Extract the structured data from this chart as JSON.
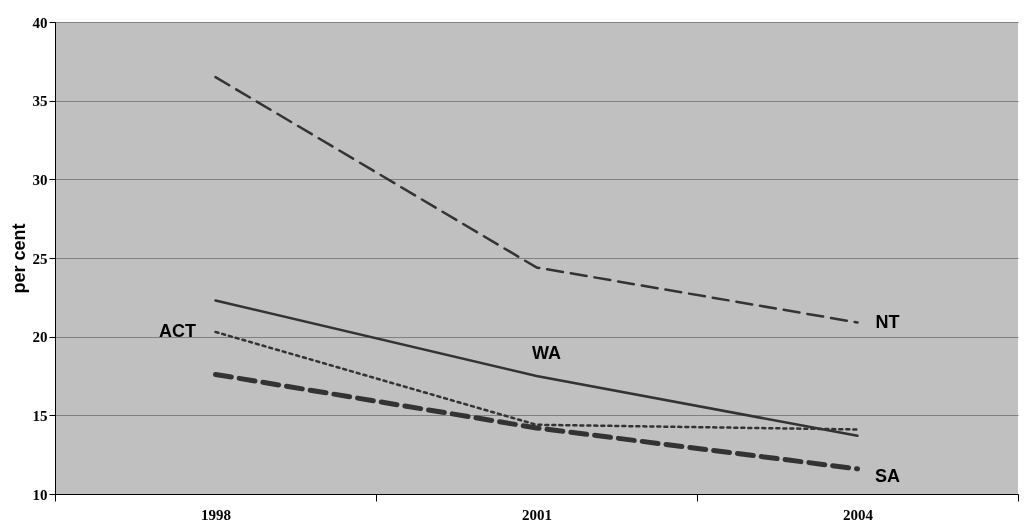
{
  "chart_data": {
    "type": "line",
    "ylabel": "per cent",
    "categories": [
      "1998",
      "2001",
      "2004"
    ],
    "series": [
      {
        "name": "NT",
        "color": "#333333",
        "line_style": "dashed",
        "values": [
          36.5,
          24.4,
          20.9
        ]
      },
      {
        "name": "WA",
        "color": "#333333",
        "line_style": "solid",
        "values": [
          22.3,
          17.5,
          13.7
        ]
      },
      {
        "name": "ACT",
        "color": "#333333",
        "line_style": "dotted",
        "values": [
          20.3,
          14.4,
          14.1
        ]
      },
      {
        "name": "SA",
        "color": "#333333",
        "line_style": "dashed",
        "values": [
          17.6,
          14.2,
          11.6
        ]
      }
    ],
    "ylim": [
      10,
      40
    ],
    "yticks": [
      10,
      15,
      20,
      25,
      30,
      35,
      40
    ],
    "grid": "y",
    "legend": false,
    "marker": "none"
  }
}
